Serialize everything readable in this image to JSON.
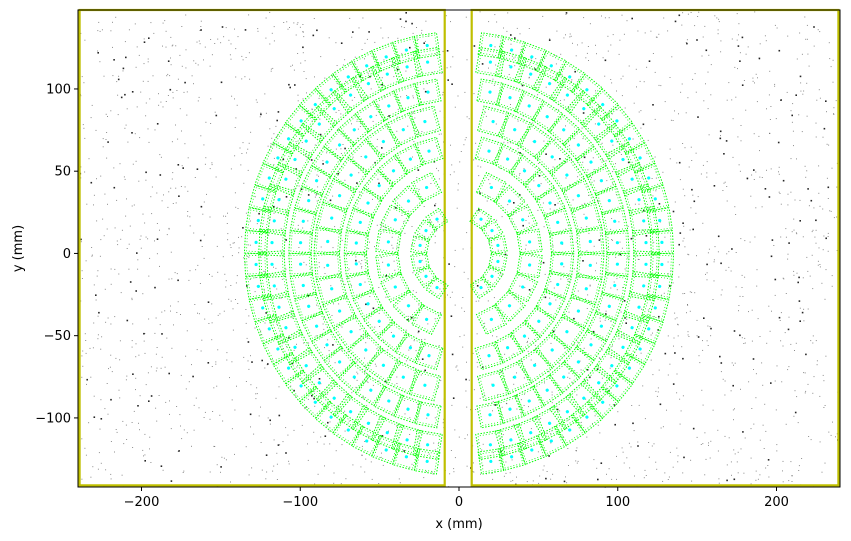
{
  "chart_data": {
    "type": "scatter",
    "title": "",
    "xlabel": "x (mm)",
    "ylabel": "y (mm)",
    "xlim": [
      -240,
      240
    ],
    "ylim": [
      -142,
      148
    ],
    "x_ticks": [
      -200,
      -100,
      0,
      100,
      200
    ],
    "y_ticks": [
      -100,
      -50,
      0,
      50,
      100
    ],
    "x_tick_labels": [
      "−200",
      "−100",
      "0",
      "100",
      "200"
    ],
    "y_tick_labels": [
      "−100",
      "−50",
      "0",
      "50",
      "100"
    ],
    "grid": false,
    "legend": "none",
    "colors": {
      "frame": "#bfbf00",
      "module_outline": "#00ff00",
      "module_center": "#00ffff",
      "background_hits": "#000000"
    },
    "detector_frames": [
      {
        "name": "left",
        "x": [
          -239,
          -9
        ],
        "y": [
          -141,
          148
        ]
      },
      {
        "name": "right",
        "x": [
          8,
          239
        ],
        "y": [
          -141,
          148
        ]
      }
    ],
    "rings": [
      {
        "radius": 25,
        "modules": 8,
        "size": 10
      },
      {
        "radius": 45,
        "modules": 10,
        "size": 14
      },
      {
        "radius": 65,
        "modules": 16,
        "size": 14
      },
      {
        "radius": 83,
        "modules": 18,
        "size": 16
      },
      {
        "radius": 100,
        "modules": 24,
        "size": 14
      },
      {
        "radius": 118,
        "modules": 28,
        "size": 16
      },
      {
        "radius": 128,
        "modules": 30,
        "size": 14
      }
    ],
    "background_hits_count": 2600
  }
}
